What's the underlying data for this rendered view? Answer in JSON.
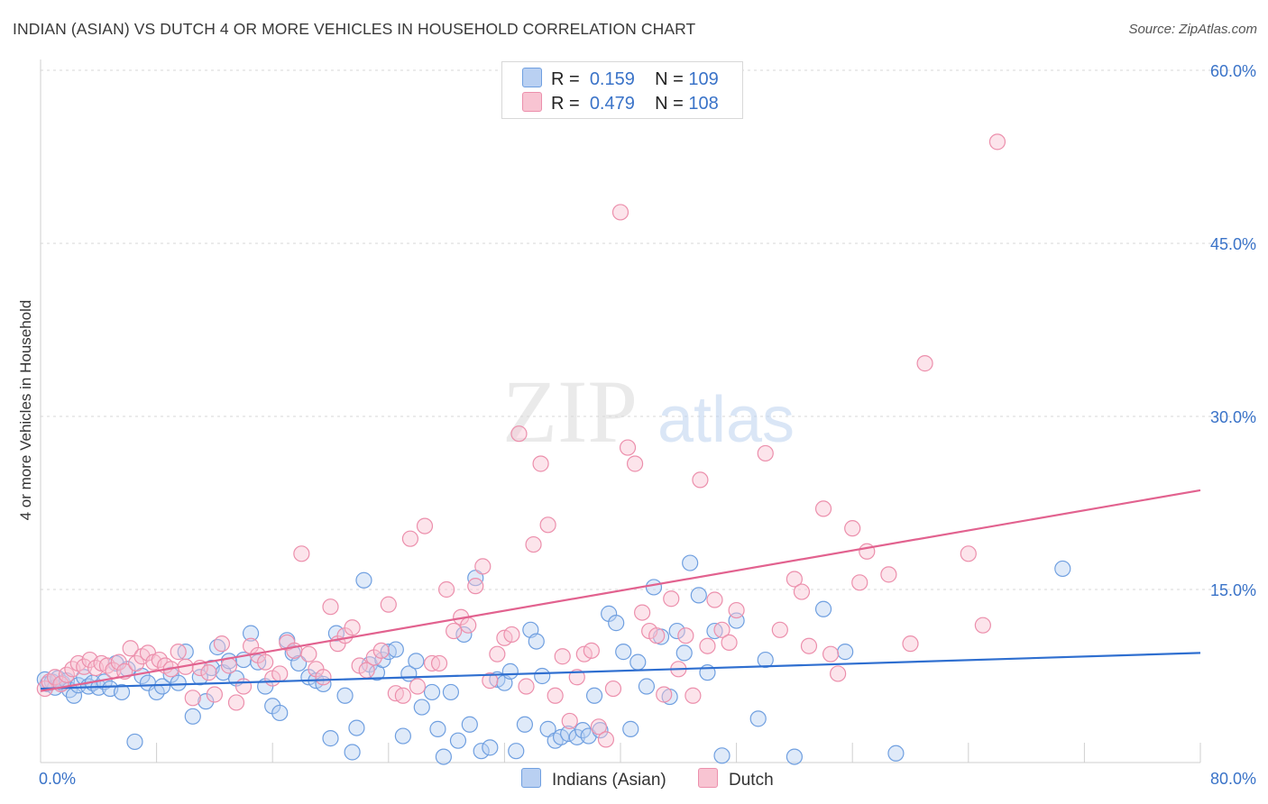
{
  "title": "INDIAN (ASIAN) VS DUTCH 4 OR MORE VEHICLES IN HOUSEHOLD CORRELATION CHART",
  "source": "Source: ZipAtlas.com",
  "watermark": {
    "zip": "ZIP",
    "atlas": "atlas"
  },
  "legend": {
    "indians": {
      "r_label": "R =",
      "r_value": "0.159",
      "n_label": "N =",
      "n_value": "109"
    },
    "dutch": {
      "r_label": "R =",
      "r_value": "0.479",
      "n_label": "N =",
      "n_value": "108"
    }
  },
  "bottom_legend": {
    "indians": "Indians (Asian)",
    "dutch": "Dutch"
  },
  "colors": {
    "indians_fill": "#b9d0f2",
    "indians_stroke": "#6f9fe0",
    "indians_line": "#2f6fd0",
    "dutch_fill": "#f8c4d2",
    "dutch_stroke": "#ec8fac",
    "dutch_line": "#e2628f",
    "axis_label": "#3a73c8",
    "grid": "#d7d7d7"
  },
  "chart_data": {
    "type": "scatter",
    "title": "INDIAN (ASIAN) VS DUTCH 4 OR MORE VEHICLES IN HOUSEHOLD CORRELATION CHART",
    "xlabel": "",
    "ylabel": "4 or more Vehicles in Household",
    "xlim": [
      0,
      80
    ],
    "ylim": [
      0,
      60
    ],
    "x_tick_labels": [
      {
        "value": 0,
        "label": "0.0%"
      },
      {
        "value": 80,
        "label": "80.0%"
      }
    ],
    "y_tick_labels": [
      {
        "value": 15,
        "label": "15.0%"
      },
      {
        "value": 30,
        "label": "30.0%"
      },
      {
        "value": 45,
        "label": "45.0%"
      },
      {
        "value": 60,
        "label": "60.0%"
      }
    ],
    "grid": true,
    "legend_position": "top-center",
    "series": [
      {
        "name": "Indians (Asian)",
        "trend": [
          [
            0,
            6.4
          ],
          [
            80,
            9.5
          ]
        ],
        "points": [
          [
            0.3,
            7.2
          ],
          [
            0.5,
            6.8
          ],
          [
            0.8,
            7.0
          ],
          [
            1.0,
            6.5
          ],
          [
            1.2,
            7.3
          ],
          [
            1.5,
            6.9
          ],
          [
            1.8,
            7.1
          ],
          [
            2.0,
            6.3
          ],
          [
            2.3,
            5.8
          ],
          [
            2.6,
            6.7
          ],
          [
            3.0,
            7.4
          ],
          [
            3.3,
            6.6
          ],
          [
            3.6,
            6.9
          ],
          [
            4.0,
            6.5
          ],
          [
            4.4,
            7.0
          ],
          [
            4.8,
            6.4
          ],
          [
            5.2,
            8.6
          ],
          [
            5.6,
            6.1
          ],
          [
            6.0,
            8.1
          ],
          [
            6.5,
            1.8
          ],
          [
            7.0,
            7.5
          ],
          [
            7.4,
            6.9
          ],
          [
            8.0,
            6.1
          ],
          [
            8.4,
            6.6
          ],
          [
            9.0,
            7.6
          ],
          [
            9.5,
            6.9
          ],
          [
            10.0,
            9.6
          ],
          [
            10.5,
            4.0
          ],
          [
            11.0,
            7.4
          ],
          [
            11.4,
            5.3
          ],
          [
            11.8,
            8.2
          ],
          [
            12.2,
            10.0
          ],
          [
            12.6,
            7.8
          ],
          [
            13.0,
            8.8
          ],
          [
            13.5,
            7.3
          ],
          [
            14.0,
            8.9
          ],
          [
            14.5,
            11.2
          ],
          [
            15.0,
            8.7
          ],
          [
            15.5,
            6.6
          ],
          [
            16.0,
            4.9
          ],
          [
            16.5,
            4.3
          ],
          [
            17.0,
            10.6
          ],
          [
            17.4,
            9.5
          ],
          [
            17.8,
            8.6
          ],
          [
            18.5,
            7.4
          ],
          [
            19.0,
            7.1
          ],
          [
            19.5,
            6.8
          ],
          [
            20.0,
            2.1
          ],
          [
            20.4,
            11.2
          ],
          [
            21.0,
            5.8
          ],
          [
            21.5,
            0.9
          ],
          [
            21.8,
            3.0
          ],
          [
            22.3,
            15.8
          ],
          [
            22.7,
            8.5
          ],
          [
            23.2,
            7.8
          ],
          [
            23.6,
            8.9
          ],
          [
            24.0,
            9.6
          ],
          [
            24.5,
            9.8
          ],
          [
            25.0,
            2.3
          ],
          [
            25.4,
            7.7
          ],
          [
            25.9,
            8.8
          ],
          [
            26.3,
            4.8
          ],
          [
            27.0,
            6.1
          ],
          [
            27.4,
            2.9
          ],
          [
            27.8,
            0.5
          ],
          [
            28.3,
            6.1
          ],
          [
            28.8,
            1.9
          ],
          [
            29.2,
            11.1
          ],
          [
            29.6,
            3.3
          ],
          [
            30.0,
            16.0
          ],
          [
            30.4,
            1.0
          ],
          [
            31.0,
            1.3
          ],
          [
            31.5,
            7.2
          ],
          [
            32.0,
            6.9
          ],
          [
            32.4,
            7.9
          ],
          [
            32.8,
            1.0
          ],
          [
            33.4,
            3.3
          ],
          [
            33.8,
            11.5
          ],
          [
            34.2,
            10.5
          ],
          [
            34.6,
            7.5
          ],
          [
            35.0,
            2.9
          ],
          [
            35.5,
            1.9
          ],
          [
            35.9,
            2.2
          ],
          [
            36.4,
            2.5
          ],
          [
            37.0,
            2.2
          ],
          [
            37.4,
            2.8
          ],
          [
            37.8,
            2.3
          ],
          [
            38.2,
            5.8
          ],
          [
            38.6,
            2.8
          ],
          [
            39.2,
            12.9
          ],
          [
            39.7,
            12.1
          ],
          [
            40.2,
            9.6
          ],
          [
            40.7,
            2.9
          ],
          [
            41.2,
            8.7
          ],
          [
            41.8,
            6.6
          ],
          [
            42.3,
            15.2
          ],
          [
            42.8,
            10.9
          ],
          [
            43.4,
            5.7
          ],
          [
            43.9,
            11.4
          ],
          [
            44.4,
            9.5
          ],
          [
            44.8,
            17.3
          ],
          [
            45.4,
            14.5
          ],
          [
            46.0,
            7.8
          ],
          [
            46.5,
            11.4
          ],
          [
            47.0,
            0.6
          ],
          [
            48.0,
            12.3
          ],
          [
            49.5,
            3.8
          ],
          [
            50.0,
            8.9
          ],
          [
            52.0,
            0.5
          ],
          [
            54.0,
            13.3
          ],
          [
            55.5,
            9.6
          ],
          [
            59.0,
            0.8
          ],
          [
            70.5,
            16.8
          ]
        ]
      },
      {
        "name": "Dutch",
        "trend": [
          [
            0,
            6.2
          ],
          [
            80,
            23.6
          ]
        ],
        "points": [
          [
            0.3,
            6.4
          ],
          [
            0.6,
            7.0
          ],
          [
            1.0,
            7.4
          ],
          [
            1.4,
            6.8
          ],
          [
            1.8,
            7.6
          ],
          [
            2.2,
            8.1
          ],
          [
            2.6,
            8.6
          ],
          [
            3.0,
            8.3
          ],
          [
            3.4,
            8.9
          ],
          [
            3.8,
            8.2
          ],
          [
            4.2,
            8.6
          ],
          [
            4.6,
            8.4
          ],
          [
            5.0,
            8.0
          ],
          [
            5.4,
            8.7
          ],
          [
            5.8,
            7.9
          ],
          [
            6.2,
            9.9
          ],
          [
            6.6,
            8.6
          ],
          [
            7.0,
            9.2
          ],
          [
            7.4,
            9.5
          ],
          [
            7.8,
            8.7
          ],
          [
            8.2,
            8.9
          ],
          [
            8.6,
            8.4
          ],
          [
            9.0,
            8.1
          ],
          [
            9.5,
            9.6
          ],
          [
            10.0,
            8.3
          ],
          [
            10.5,
            5.6
          ],
          [
            11.0,
            8.2
          ],
          [
            11.6,
            7.8
          ],
          [
            12.0,
            5.9
          ],
          [
            12.5,
            10.3
          ],
          [
            13.0,
            8.4
          ],
          [
            13.5,
            5.2
          ],
          [
            14.0,
            6.6
          ],
          [
            14.5,
            10.1
          ],
          [
            15.0,
            9.3
          ],
          [
            15.5,
            8.7
          ],
          [
            16.0,
            7.3
          ],
          [
            16.5,
            7.7
          ],
          [
            17.0,
            10.4
          ],
          [
            17.5,
            9.7
          ],
          [
            18.0,
            18.1
          ],
          [
            18.5,
            9.4
          ],
          [
            19.0,
            8.1
          ],
          [
            19.5,
            7.4
          ],
          [
            20.0,
            13.5
          ],
          [
            20.5,
            10.3
          ],
          [
            21.0,
            11.0
          ],
          [
            21.5,
            11.7
          ],
          [
            22.0,
            8.4
          ],
          [
            22.5,
            8.0
          ],
          [
            23.0,
            9.1
          ],
          [
            23.5,
            9.7
          ],
          [
            24.0,
            13.7
          ],
          [
            24.5,
            6.0
          ],
          [
            25.0,
            5.8
          ],
          [
            25.5,
            19.4
          ],
          [
            26.0,
            6.6
          ],
          [
            26.5,
            20.5
          ],
          [
            27.0,
            8.6
          ],
          [
            27.5,
            8.6
          ],
          [
            28.0,
            15.0
          ],
          [
            28.5,
            11.4
          ],
          [
            29.0,
            12.6
          ],
          [
            29.5,
            11.9
          ],
          [
            30.0,
            15.3
          ],
          [
            30.5,
            17.0
          ],
          [
            31.0,
            7.1
          ],
          [
            31.5,
            9.4
          ],
          [
            32.0,
            10.8
          ],
          [
            32.5,
            11.1
          ],
          [
            33.0,
            28.5
          ],
          [
            33.5,
            6.6
          ],
          [
            34.0,
            18.9
          ],
          [
            34.5,
            25.9
          ],
          [
            35.0,
            20.6
          ],
          [
            35.5,
            5.8
          ],
          [
            36.0,
            9.2
          ],
          [
            36.5,
            3.6
          ],
          [
            37.0,
            7.4
          ],
          [
            37.5,
            9.4
          ],
          [
            38.0,
            9.7
          ],
          [
            38.5,
            3.1
          ],
          [
            39.0,
            2.0
          ],
          [
            39.5,
            6.4
          ],
          [
            40.0,
            47.7
          ],
          [
            40.5,
            27.3
          ],
          [
            41.0,
            25.9
          ],
          [
            41.5,
            13.0
          ],
          [
            42.0,
            11.4
          ],
          [
            42.5,
            11.0
          ],
          [
            43.0,
            5.9
          ],
          [
            43.5,
            14.2
          ],
          [
            44.0,
            8.1
          ],
          [
            44.5,
            11.0
          ],
          [
            45.0,
            5.8
          ],
          [
            45.5,
            24.5
          ],
          [
            46.0,
            10.1
          ],
          [
            46.5,
            14.1
          ],
          [
            47.0,
            11.5
          ],
          [
            47.5,
            10.4
          ],
          [
            48.0,
            13.2
          ],
          [
            50.0,
            26.8
          ],
          [
            51.0,
            11.5
          ],
          [
            52.0,
            15.9
          ],
          [
            52.5,
            14.8
          ],
          [
            53.0,
            10.1
          ],
          [
            54.0,
            22.0
          ],
          [
            54.5,
            9.4
          ],
          [
            55.0,
            7.7
          ],
          [
            56.0,
            20.3
          ],
          [
            56.5,
            15.6
          ],
          [
            57.0,
            18.3
          ],
          [
            58.5,
            16.3
          ],
          [
            60.0,
            10.3
          ],
          [
            61.0,
            34.6
          ],
          [
            64.0,
            18.1
          ],
          [
            65.0,
            11.9
          ],
          [
            66.0,
            53.8
          ]
        ]
      }
    ]
  }
}
